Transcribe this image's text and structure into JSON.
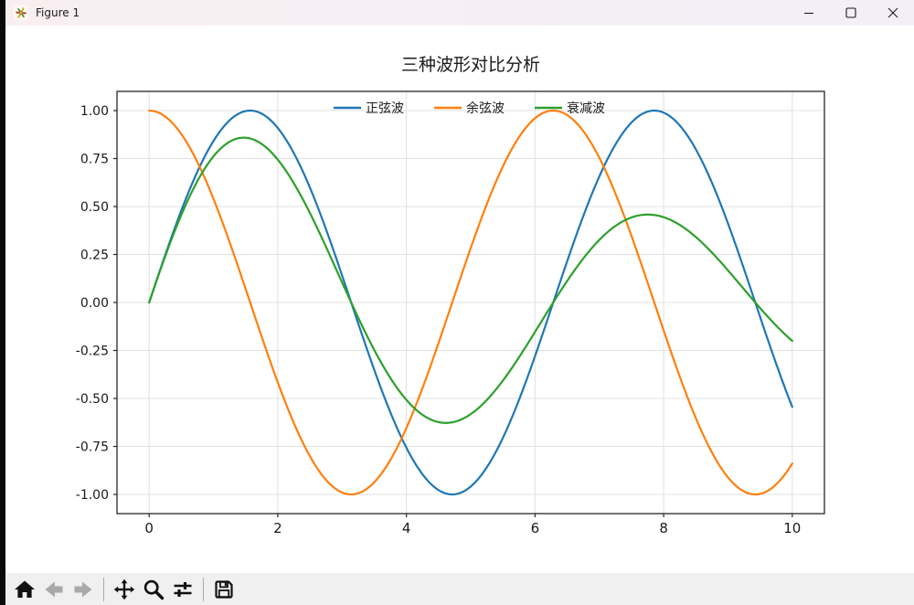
{
  "window": {
    "title": "Figure 1",
    "icons": [
      "app-icon",
      "minimize-icon",
      "maximize-icon",
      "close-icon"
    ]
  },
  "toolbar": {
    "icons": [
      "home-icon",
      "back-icon",
      "forward-icon",
      "pan-icon",
      "zoom-icon",
      "subplots-icon",
      "save-icon"
    ],
    "disabled_icons": [
      "back-icon",
      "forward-icon"
    ]
  },
  "chart_data": {
    "type": "line",
    "title": "三种波形对比分析",
    "xlabel": "",
    "ylabel": "",
    "x_range": [
      0,
      10
    ],
    "xlim": [
      -0.5,
      10.5
    ],
    "ylim": [
      -1.1,
      1.1
    ],
    "xticks": [
      0,
      2,
      4,
      6,
      8,
      10
    ],
    "yticks": [
      1.0,
      0.75,
      0.5,
      0.25,
      0.0,
      -0.25,
      -0.5,
      -0.75,
      -1.0
    ],
    "ytick_decimals": 2,
    "grid": true,
    "legend_position": "upper-center-horizontal-frameless",
    "samples": 400,
    "line_width": 2.2,
    "series": [
      {
        "name": "正弦波",
        "color": "#1f77b4",
        "formula": "sin(x)",
        "x_at_integers": [
          0,
          1,
          2,
          3,
          4,
          5,
          6,
          7,
          8,
          9,
          10
        ],
        "values_at_integers": [
          0,
          0.8415,
          0.9093,
          0.1411,
          -0.7568,
          -0.9589,
          -0.2794,
          0.657,
          0.9894,
          0.4121,
          -0.544
        ]
      },
      {
        "name": "余弦波",
        "color": "#ff7f0e",
        "formula": "cos(x)",
        "x_at_integers": [
          0,
          1,
          2,
          3,
          4,
          5,
          6,
          7,
          8,
          9,
          10
        ],
        "values_at_integers": [
          1,
          0.5403,
          -0.4161,
          -0.99,
          -0.6536,
          0.2837,
          0.9602,
          0.7539,
          -0.1455,
          -0.9111,
          -0.8391
        ]
      },
      {
        "name": "衰减波",
        "color": "#2ca02c",
        "formula": "sin(x)*exp(-x/10)",
        "x_at_integers": [
          0,
          1,
          2,
          3,
          4,
          5,
          6,
          7,
          8,
          9,
          10
        ],
        "values_at_integers": [
          0,
          0.7614,
          0.7445,
          0.1045,
          -0.5073,
          -0.5816,
          -0.1533,
          0.3263,
          0.4445,
          0.1676,
          -0.2001
        ]
      }
    ]
  }
}
